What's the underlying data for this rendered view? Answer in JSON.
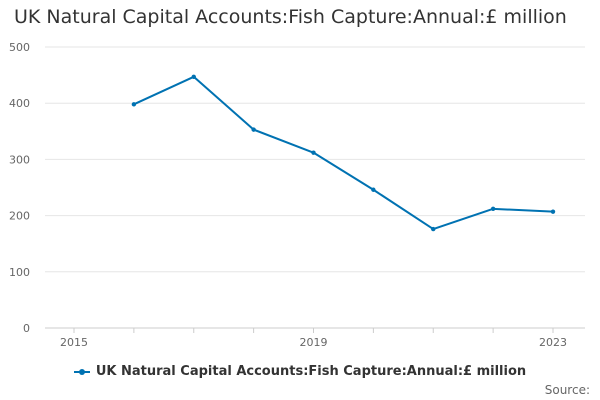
{
  "chart_data": {
    "type": "line",
    "title": "UK Natural Capital Accounts:Fish Capture:Annual:£ million",
    "xlabel": "",
    "ylabel": "",
    "x_tick_labels": [
      "2015",
      "2019",
      "2023"
    ],
    "y_tick_labels": [
      "0",
      "100",
      "200",
      "300",
      "400",
      "500"
    ],
    "xlim": [
      2015,
      2023
    ],
    "ylim": [
      0,
      500
    ],
    "grid": "horizontal",
    "legend_position": "bottom",
    "series": [
      {
        "name": "UK Natural Capital Accounts:Fish Capture:Annual:£ million",
        "color": "#0072b2",
        "x": [
          2016,
          2017,
          2018,
          2019,
          2020,
          2021,
          2022,
          2023
        ],
        "values": [
          398,
          447,
          353,
          312,
          246,
          176,
          212,
          207
        ]
      }
    ]
  },
  "footer": {
    "source": "Source:"
  }
}
